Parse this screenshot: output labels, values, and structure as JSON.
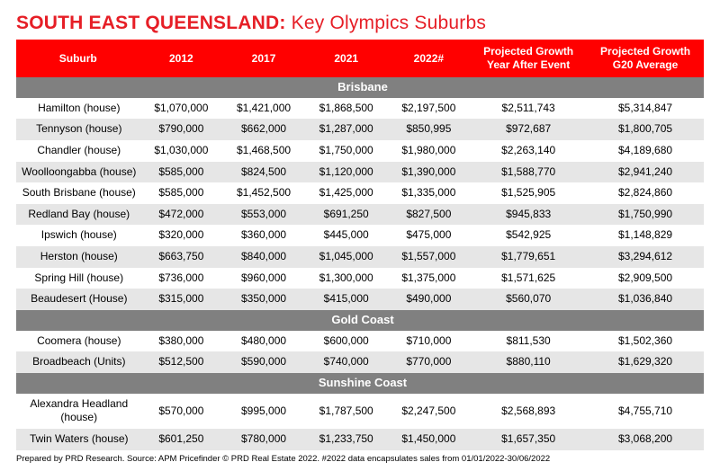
{
  "title": {
    "strong": "SOUTH EAST QUEENSLAND:",
    "light": " Key Olympics Suburbs",
    "color": "#e61e26"
  },
  "header": {
    "background": "#ff0000",
    "text_color": "#ffffff",
    "columns": [
      "Suburb",
      "2012",
      "2017",
      "2021",
      "2022#",
      "Projected Growth Year After Event",
      "Projected Growth G20 Average"
    ],
    "col_widths": [
      "18%",
      "12%",
      "12%",
      "12%",
      "12%",
      "17%",
      "17%"
    ]
  },
  "section_style": {
    "background": "#808080",
    "text_color": "#ffffff"
  },
  "row_colors": {
    "even": "#ffffff",
    "odd": "#e6e6e6"
  },
  "footnote": "Prepared by PRD Research. Source: APM Pricefinder © PRD Real Estate 2022. #2022 data encapsulates sales from 01/01/2022-30/06/2022",
  "sections": [
    {
      "name": "Brisbane",
      "rows": [
        {
          "suburb": "Hamilton (house)",
          "v2012": "$1,070,000",
          "v2017": "$1,421,000",
          "v2021": "$1,868,500",
          "v2022": "$2,197,500",
          "pgyae": "$2,511,743",
          "pgg20": "$5,314,847"
        },
        {
          "suburb": "Tennyson (house)",
          "v2012": "$790,000",
          "v2017": "$662,000",
          "v2021": "$1,287,000",
          "v2022": "$850,995",
          "pgyae": "$972,687",
          "pgg20": "$1,800,705"
        },
        {
          "suburb": "Chandler (house)",
          "v2012": "$1,030,000",
          "v2017": "$1,468,500",
          "v2021": "$1,750,000",
          "v2022": "$1,980,000",
          "pgyae": "$2,263,140",
          "pgg20": "$4,189,680"
        },
        {
          "suburb": "Woolloongabba (house)",
          "v2012": "$585,000",
          "v2017": "$824,500",
          "v2021": "$1,120,000",
          "v2022": "$1,390,000",
          "pgyae": "$1,588,770",
          "pgg20": "$2,941,240"
        },
        {
          "suburb": "South Brisbane (house)",
          "v2012": "$585,000",
          "v2017": "$1,452,500",
          "v2021": "$1,425,000",
          "v2022": "$1,335,000",
          "pgyae": "$1,525,905",
          "pgg20": "$2,824,860"
        },
        {
          "suburb": "Redland Bay (house)",
          "v2012": "$472,000",
          "v2017": "$553,000",
          "v2021": "$691,250",
          "v2022": "$827,500",
          "pgyae": "$945,833",
          "pgg20": "$1,750,990"
        },
        {
          "suburb": "Ipswich (house)",
          "v2012": "$320,000",
          "v2017": "$360,000",
          "v2021": "$445,000",
          "v2022": "$475,000",
          "pgyae": "$542,925",
          "pgg20": "$1,148,829"
        },
        {
          "suburb": "Herston (house)",
          "v2012": "$663,750",
          "v2017": "$840,000",
          "v2021": "$1,045,000",
          "v2022": "$1,557,000",
          "pgyae": "$1,779,651",
          "pgg20": "$3,294,612"
        },
        {
          "suburb": "Spring Hill (house)",
          "v2012": "$736,000",
          "v2017": "$960,000",
          "v2021": "$1,300,000",
          "v2022": "$1,375,000",
          "pgyae": "$1,571,625",
          "pgg20": "$2,909,500"
        },
        {
          "suburb": "Beaudesert (House)",
          "v2012": "$315,000",
          "v2017": "$350,000",
          "v2021": "$415,000",
          "v2022": "$490,000",
          "pgyae": "$560,070",
          "pgg20": "$1,036,840"
        }
      ]
    },
    {
      "name": "Gold Coast",
      "rows": [
        {
          "suburb": "Coomera (house)",
          "v2012": "$380,000",
          "v2017": "$480,000",
          "v2021": "$600,000",
          "v2022": "$710,000",
          "pgyae": "$811,530",
          "pgg20": "$1,502,360"
        },
        {
          "suburb": "Broadbeach (Units)",
          "v2012": "$512,500",
          "v2017": "$590,000",
          "v2021": "$740,000",
          "v2022": "$770,000",
          "pgyae": "$880,110",
          "pgg20": "$1,629,320"
        }
      ]
    },
    {
      "name": "Sunshine Coast",
      "rows": [
        {
          "suburb": "Alexandra Headland (house)",
          "v2012": "$570,000",
          "v2017": "$995,000",
          "v2021": "$1,787,500",
          "v2022": "$2,247,500",
          "pgyae": "$2,568,893",
          "pgg20": "$4,755,710"
        },
        {
          "suburb": "Twin Waters (house)",
          "v2012": "$601,250",
          "v2017": "$780,000",
          "v2021": "$1,233,750",
          "v2022": "$1,450,000",
          "pgyae": "$1,657,350",
          "pgg20": "$3,068,200"
        }
      ]
    }
  ]
}
